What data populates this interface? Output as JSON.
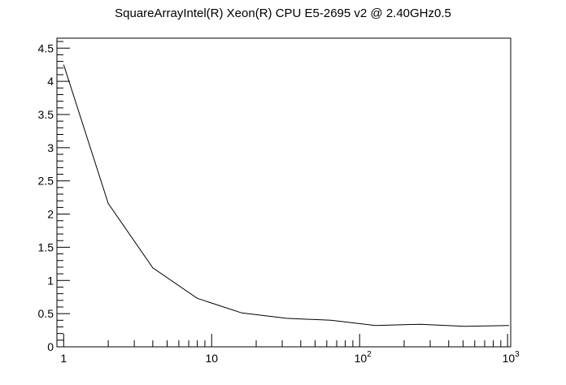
{
  "chart_data": {
    "type": "line",
    "title": "SquareArrayIntel(R) Xeon(R) CPU E5-2695 v2 @ 2.40GHz0.5",
    "xlabel": "",
    "ylabel": "",
    "x_scale": "log",
    "xlim": [
      0.9,
      1050
    ],
    "ylim": [
      0,
      4.65
    ],
    "grid": false,
    "y_ticks": [
      "0",
      "0.5",
      "1",
      "1.5",
      "2",
      "2.5",
      "3",
      "3.5",
      "4",
      "4.5"
    ],
    "y_tick_values": [
      0,
      0.5,
      1,
      1.5,
      2,
      2.5,
      3,
      3.5,
      4,
      4.5
    ],
    "x_ticks": [
      {
        "value": 1,
        "base": "1",
        "exp": ""
      },
      {
        "value": 10,
        "base": "10",
        "exp": ""
      },
      {
        "value": 100,
        "base": "10",
        "exp": "2"
      },
      {
        "value": 1000,
        "base": "10",
        "exp": "3"
      }
    ],
    "series": [
      {
        "color": "#000000",
        "x": [
          1,
          2,
          4,
          8,
          16,
          32,
          64,
          128,
          256,
          512,
          1024
        ],
        "y": [
          4.25,
          2.16,
          1.19,
          0.73,
          0.51,
          0.43,
          0.4,
          0.32,
          0.34,
          0.31,
          0.32
        ]
      }
    ]
  }
}
